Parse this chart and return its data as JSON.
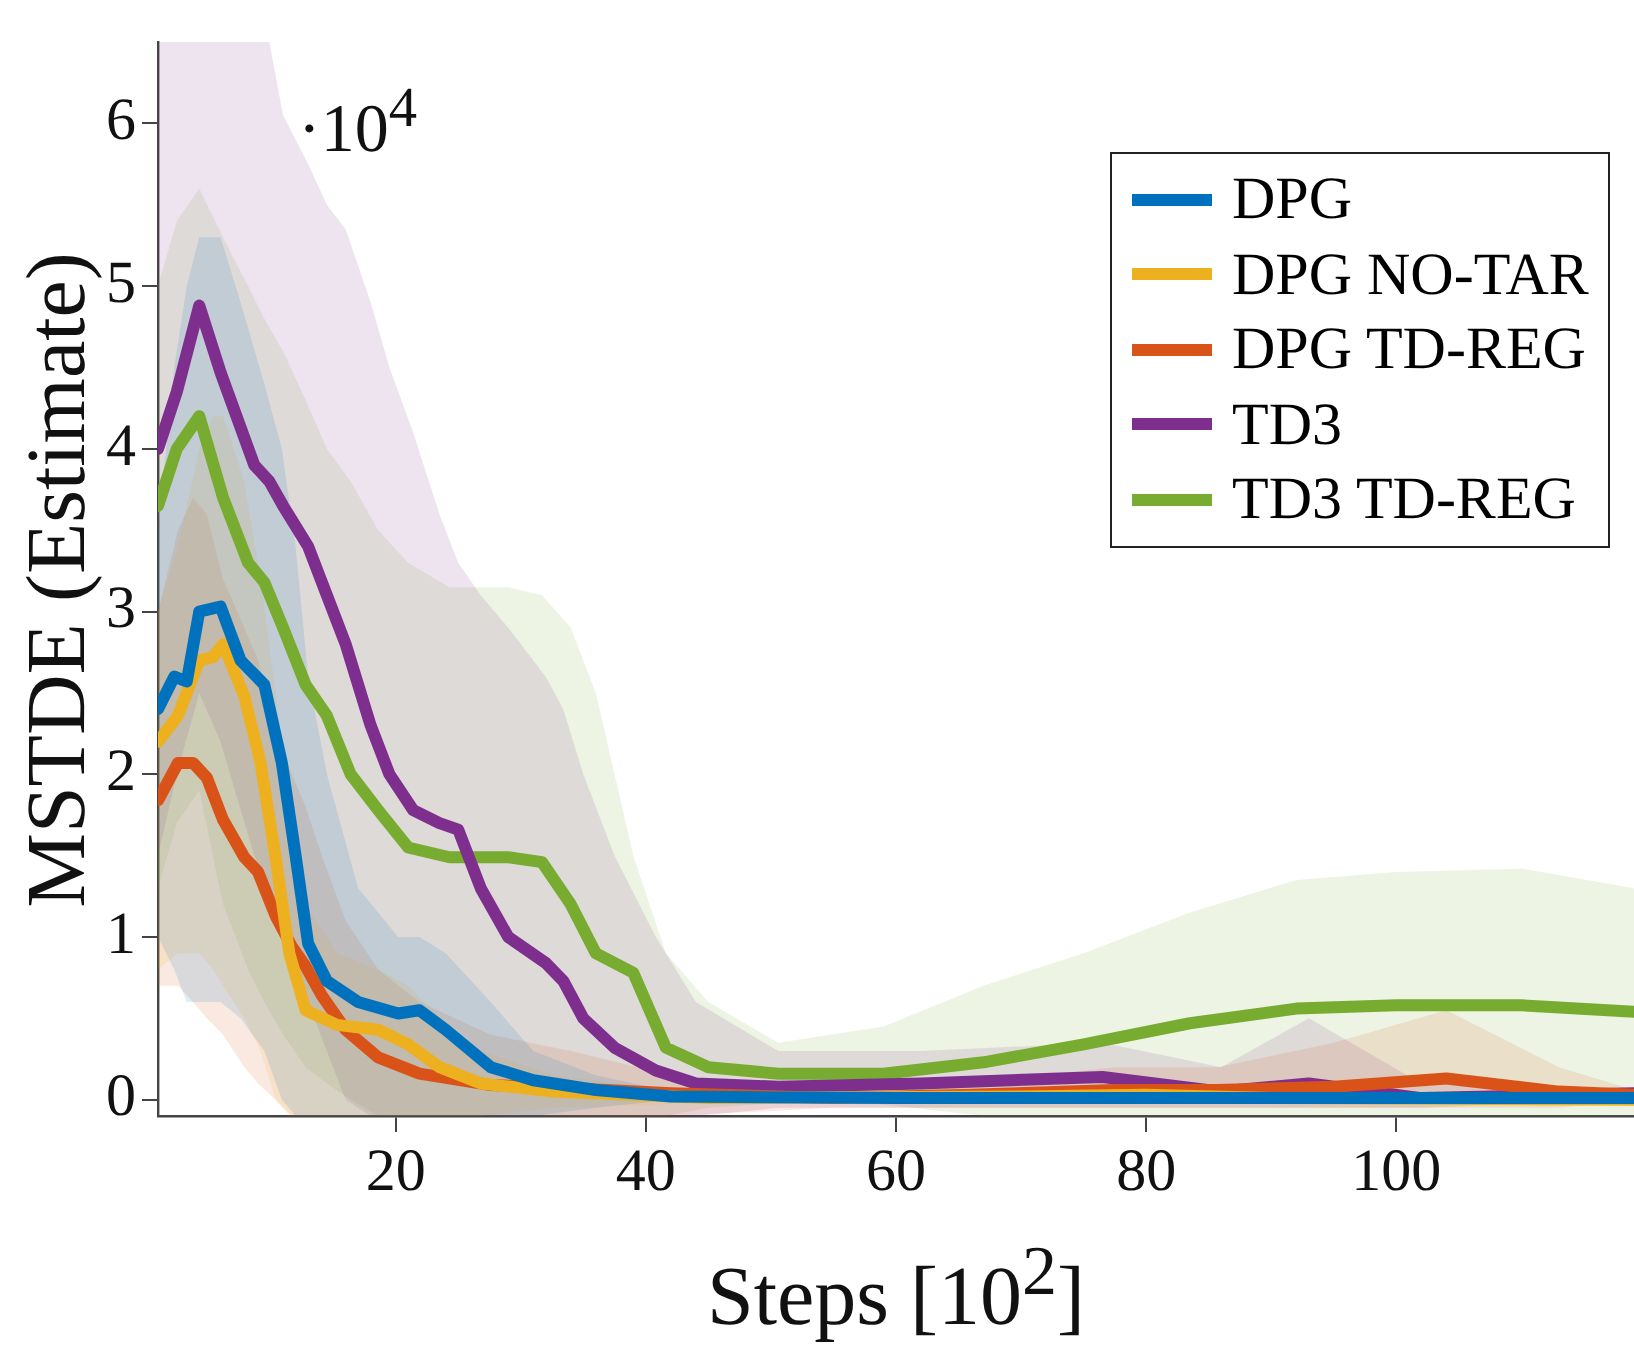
{
  "chart_data": {
    "type": "line",
    "xlabel": "Steps [10$^{2}$]",
    "ylabel": "MSTDE (Estimate)",
    "annotations": [
      "·10$^{4}$"
    ],
    "xlim": [
      1,
      119
    ],
    "xticks": [
      20,
      40,
      60,
      80,
      100
    ],
    "ylim": [
      -0.1,
      6.5
    ],
    "yticks": [
      0,
      1,
      2,
      3,
      4,
      5,
      6
    ],
    "grid": false,
    "legend": "top right",
    "line_style": "solid",
    "marker": "none",
    "series": [
      {
        "name": "DPG",
        "color": "#0072bd",
        "x": [
          1,
          2.3,
          3.3,
          4.3,
          6,
          7.6,
          9.5,
          10.9,
          12,
          13,
          14.5,
          17,
          20.2,
          21.9,
          24,
          27.6,
          31,
          36,
          42,
          60,
          119
        ],
        "values": [
          2.4,
          2.6,
          2.57,
          3.0,
          3.03,
          2.7,
          2.55,
          2.07,
          1.5,
          0.96,
          0.73,
          0.6,
          0.53,
          0.55,
          0.43,
          0.2,
          0.12,
          0.06,
          0.02,
          0.01,
          0.01
        ],
        "upper": [
          3.5,
          4.5,
          5.0,
          5.3,
          5.3,
          4.9,
          4.4,
          4.0,
          3.4,
          2.6,
          2.0,
          1.3,
          1.0,
          1.0,
          0.9,
          0.6,
          0.3,
          0.15,
          0.05,
          0.02,
          0.02
        ],
        "lower": [
          1.0,
          0.8,
          0.6,
          0.6,
          0.6,
          0.5,
          0.3,
          0,
          -0.1,
          -0.1,
          -0.1,
          -0.1,
          -0.1,
          -0.1,
          -0.1,
          -0.1,
          -0.1,
          -0.05,
          0,
          0,
          0
        ]
      },
      {
        "name": "DPG NO-TAR",
        "color": "#edb120",
        "x": [
          1,
          2.6,
          4.3,
          5.4,
          6.2,
          7.9,
          9.2,
          10.4,
          11.5,
          12.8,
          15.3,
          18.6,
          21,
          23.5,
          26.8,
          32.6,
          45,
          70,
          80,
          90,
          119
        ],
        "values": [
          2.2,
          2.36,
          2.7,
          2.72,
          2.8,
          2.48,
          2.07,
          1.49,
          0.9,
          0.55,
          0.46,
          0.43,
          0.34,
          0.2,
          0.1,
          0.05,
          0.01,
          0.02,
          0.03,
          0.01,
          0
        ],
        "upper": [
          3.0,
          3.4,
          4.0,
          4.2,
          4.2,
          3.8,
          3.2,
          2.5,
          1.8,
          1.2,
          0.9,
          0.8,
          0.7,
          0.5,
          0.3,
          0.15,
          0.03,
          0.06,
          0.08,
          0.03,
          0
        ],
        "lower": [
          0.8,
          0.9,
          0.9,
          0.8,
          0.7,
          0.5,
          0.3,
          0,
          -0.1,
          -0.1,
          -0.1,
          -0.1,
          -0.1,
          -0.1,
          -0.1,
          -0.05,
          -0.02,
          -0.02,
          -0.02,
          -0.01,
          0
        ]
      },
      {
        "name": "DPG TD-REG",
        "color": "#d95319",
        "x": [
          1,
          2.6,
          3.8,
          4.9,
          6.2,
          7.9,
          9,
          10.4,
          11.7,
          12.8,
          14.1,
          16,
          18.6,
          21.9,
          27.6,
          34,
          42,
          55,
          66,
          77.5,
          85.7,
          95,
          104,
          113,
          119
        ],
        "values": [
          1.84,
          2.07,
          2.07,
          1.98,
          1.72,
          1.49,
          1.4,
          1.13,
          0.94,
          0.82,
          0.64,
          0.43,
          0.26,
          0.16,
          0.09,
          0.07,
          0.04,
          0.01,
          0.03,
          0.06,
          0.06,
          0.08,
          0.13,
          0.05,
          0.03
        ],
        "upper": [
          3.0,
          3.5,
          3.7,
          3.6,
          3.2,
          2.9,
          2.7,
          2.3,
          2.0,
          1.8,
          1.5,
          1.1,
          0.8,
          0.6,
          0.4,
          0.3,
          0.15,
          0.05,
          0.1,
          0.2,
          0.2,
          0.35,
          0.55,
          0.2,
          0.06
        ],
        "lower": [
          0.7,
          0.7,
          0.6,
          0.5,
          0.4,
          0.2,
          0.1,
          0,
          -0.1,
          -0.1,
          -0.1,
          -0.1,
          -0.1,
          -0.1,
          -0.1,
          -0.1,
          -0.1,
          -0.05,
          -0.05,
          -0.05,
          -0.05,
          -0.05,
          -0.05,
          -0.05,
          0
        ]
      },
      {
        "name": "TD3",
        "color": "#7e2f8e",
        "x": [
          1,
          2.5,
          4.3,
          6,
          8.7,
          9.9,
          11,
          13,
          14.5,
          16,
          18,
          19.5,
          21.4,
          23.5,
          25,
          26.8,
          29,
          32,
          33.4,
          35,
          37.5,
          40.8,
          44,
          50.6,
          62,
          76.5,
          86,
          93,
          102,
          119
        ],
        "values": [
          4.0,
          4.35,
          4.88,
          4.47,
          3.9,
          3.8,
          3.65,
          3.4,
          3.1,
          2.8,
          2.3,
          2.0,
          1.78,
          1.7,
          1.66,
          1.3,
          1.0,
          0.84,
          0.73,
          0.5,
          0.32,
          0.18,
          0.1,
          0.08,
          0.1,
          0.14,
          0.05,
          0.1,
          0.01,
          0.04
        ],
        "upper": [
          6.5,
          6.5,
          6.5,
          6.5,
          6.5,
          6.5,
          6.05,
          5.75,
          5.5,
          5.35,
          4.9,
          4.5,
          4.1,
          3.6,
          3.3,
          3.1,
          2.9,
          2.6,
          2.4,
          2.0,
          1.5,
          1.0,
          0.6,
          0.3,
          0.3,
          0.35,
          0.2,
          0.5,
          0.1,
          0.05
        ],
        "lower": [
          1.5,
          2.0,
          2.5,
          2.2,
          1.5,
          1.3,
          1.0,
          0.6,
          0.3,
          0,
          -0.1,
          -0.1,
          -0.1,
          -0.1,
          -0.1,
          -0.1,
          -0.1,
          -0.1,
          -0.1,
          -0.1,
          -0.1,
          -0.1,
          -0.1,
          -0.05,
          -0.05,
          -0.05,
          -0.05,
          -0.05,
          -0.05,
          0
        ]
      },
      {
        "name": "TD3 TD-REG",
        "color": "#77ac30",
        "x": [
          1,
          2.5,
          4.3,
          6.2,
          8.2,
          9.5,
          11,
          12.8,
          14.5,
          16.4,
          18.6,
          21,
          24.3,
          29,
          31.7,
          34,
          36,
          39,
          41.6,
          45,
          50.6,
          59,
          67,
          75,
          83.5,
          92,
          100,
          110,
          119
        ],
        "values": [
          3.65,
          4.0,
          4.2,
          3.7,
          3.3,
          3.18,
          2.9,
          2.55,
          2.36,
          2.0,
          1.78,
          1.55,
          1.49,
          1.49,
          1.46,
          1.2,
          0.9,
          0.78,
          0.32,
          0.2,
          0.16,
          0.16,
          0.23,
          0.34,
          0.47,
          0.56,
          0.58,
          0.58,
          0.54
        ],
        "upper": [
          5.0,
          5.4,
          5.6,
          5.3,
          5.0,
          4.8,
          4.6,
          4.3,
          4.0,
          3.8,
          3.5,
          3.3,
          3.15,
          3.15,
          3.1,
          2.9,
          2.5,
          1.5,
          0.9,
          0.6,
          0.35,
          0.45,
          0.7,
          0.9,
          1.15,
          1.35,
          1.4,
          1.42,
          1.3
        ],
        "lower": [
          1.3,
          1.7,
          1.9,
          1.2,
          0.8,
          0.6,
          0.4,
          0.2,
          0.1,
          0,
          -0.1,
          -0.1,
          -0.1,
          -0.1,
          -0.1,
          -0.1,
          -0.1,
          -0.1,
          -0.1,
          -0.05,
          -0.02,
          -0.03,
          -0.1,
          -0.1,
          -0.1,
          -0.1,
          -0.1,
          -0.1,
          -0.1
        ]
      }
    ]
  }
}
